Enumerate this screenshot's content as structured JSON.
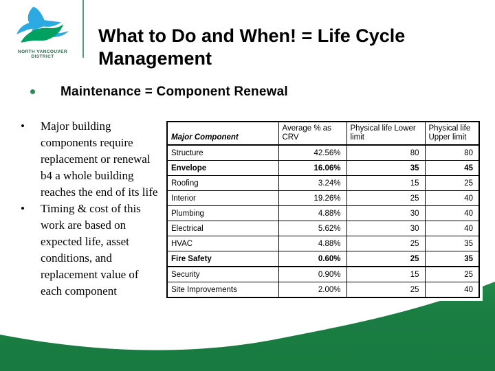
{
  "logo": {
    "icon": "eagle-logo",
    "caption_line1": "NORTH VANCOUVER",
    "caption_line2": "DISTRICT"
  },
  "title": "What to Do and When! = Life Cycle Management",
  "subtitle": "Maintenance = Component Renewal",
  "body_bullets": [
    "Major building components require replacement or renewal b4 a whole building reaches the end of its life",
    "Timing & cost of this work are based on expected life, asset conditions, and replacement value of each component"
  ],
  "table": {
    "headers": [
      "Major Component",
      "Average % as CRV",
      "Physical life Lower limit",
      "Physical life Upper limit"
    ],
    "rows": [
      {
        "component": "Structure",
        "avg": "42.56%",
        "lower": "80",
        "upper": "80",
        "bold": false,
        "section_break_before": false
      },
      {
        "component": "Envelope",
        "avg": "16.06%",
        "lower": "35",
        "upper": "45",
        "bold": true,
        "section_break_before": false
      },
      {
        "component": "Roofing",
        "avg": "3.24%",
        "lower": "15",
        "upper": "25",
        "bold": false,
        "section_break_before": false
      },
      {
        "component": "Interior",
        "avg": "19.26%",
        "lower": "25",
        "upper": "40",
        "bold": false,
        "section_break_before": false
      },
      {
        "component": "Plumbing",
        "avg": "4.88%",
        "lower": "30",
        "upper": "40",
        "bold": false,
        "section_break_before": false
      },
      {
        "component": "Electrical",
        "avg": "5.62%",
        "lower": "30",
        "upper": "40",
        "bold": false,
        "section_break_before": false
      },
      {
        "component": "HVAC",
        "avg": "4.88%",
        "lower": "25",
        "upper": "35",
        "bold": false,
        "section_break_before": false
      },
      {
        "component": "Fire Safety",
        "avg": "0.60%",
        "lower": "25",
        "upper": "35",
        "bold": true,
        "section_break_before": false
      },
      {
        "component": "Security",
        "avg": "0.90%",
        "lower": "15",
        "upper": "25",
        "bold": false,
        "section_break_before": true
      },
      {
        "component": "Site Improvements",
        "avg": "2.00%",
        "lower": "25",
        "upper": "40",
        "bold": false,
        "section_break_before": false
      }
    ]
  },
  "colors": {
    "wave_green": "#1a7d42",
    "divider_green": "#4c9e74",
    "bullet_green": "#2e8b57",
    "logo_blue": "#2da9e1",
    "logo_green": "#00a160",
    "logo_caption_green": "#2a6b4e",
    "text": "#000000"
  }
}
